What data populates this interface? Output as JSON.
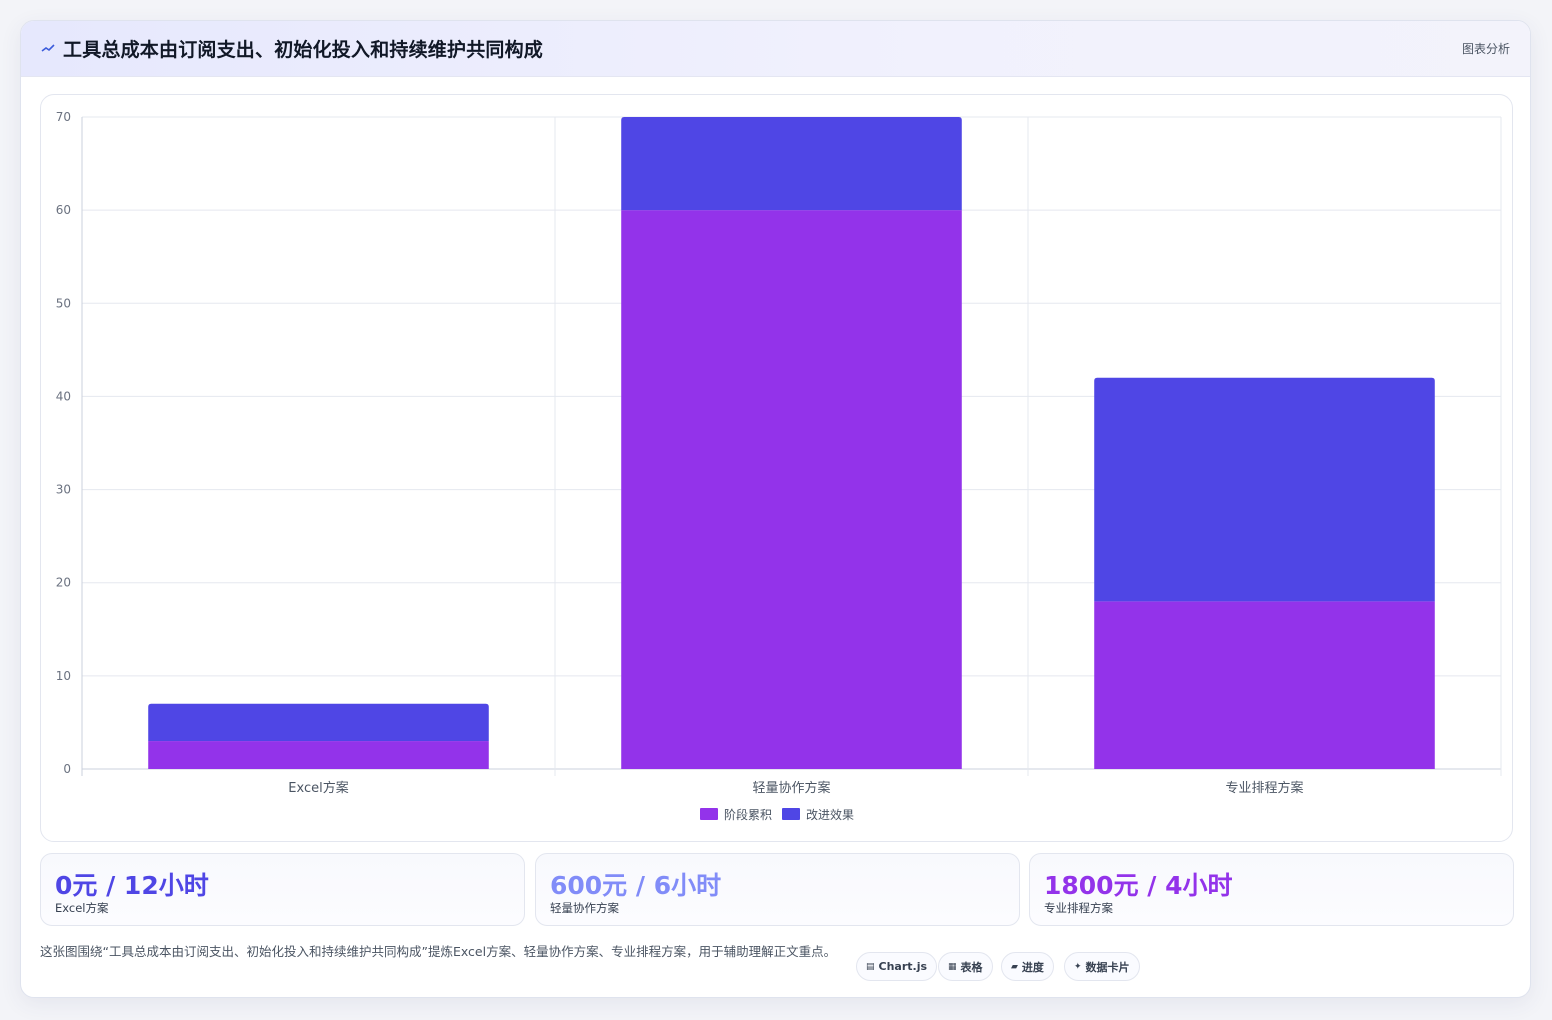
{
  "header": {
    "icon": "sparkline-icon",
    "title": "工具总成本由订阅支出、初始化投入和持续维护共同构成",
    "tag": "图表分析"
  },
  "chart_data": {
    "type": "bar",
    "stacked": true,
    "categories": [
      "Excel方案",
      "轻量协作方案",
      "专业排程方案"
    ],
    "series": [
      {
        "name": "阶段累积",
        "values": [
          3,
          60,
          18
        ],
        "color": "#9333ea"
      },
      {
        "name": "改进效果",
        "values": [
          4,
          10,
          24
        ],
        "color": "#4f46e5"
      }
    ],
    "ylim": [
      0,
      70
    ],
    "yticks": [
      0,
      10,
      20,
      30,
      40,
      50,
      60,
      70
    ],
    "grid": true,
    "legend": "bottom"
  },
  "stats": [
    {
      "value": "0元 / 12小时",
      "label": "Excel方案",
      "color": "#4f46e5"
    },
    {
      "value": "600元 / 6小时",
      "label": "轻量协作方案",
      "color": "#818cf8"
    },
    {
      "value": "1800元 / 4小时",
      "label": "专业排程方案",
      "color": "#9333ea"
    }
  ],
  "footer": {
    "text": "这张图围绕“工具总成本由订阅支出、初始化投入和持续维护共同构成”提炼Excel方案、轻量协作方案、专业排程方案，用于辅助理解正文重点。",
    "chips": [
      {
        "icon": "▤",
        "icon_name": "chart-icon",
        "label": "Chart.js"
      },
      {
        "icon": "▦",
        "icon_name": "table-icon",
        "label": "表格"
      },
      {
        "icon": "▰",
        "icon_name": "progress-icon",
        "label": "进度"
      },
      {
        "icon": "✦",
        "icon_name": "card-icon",
        "label": "数据卡片"
      }
    ]
  }
}
